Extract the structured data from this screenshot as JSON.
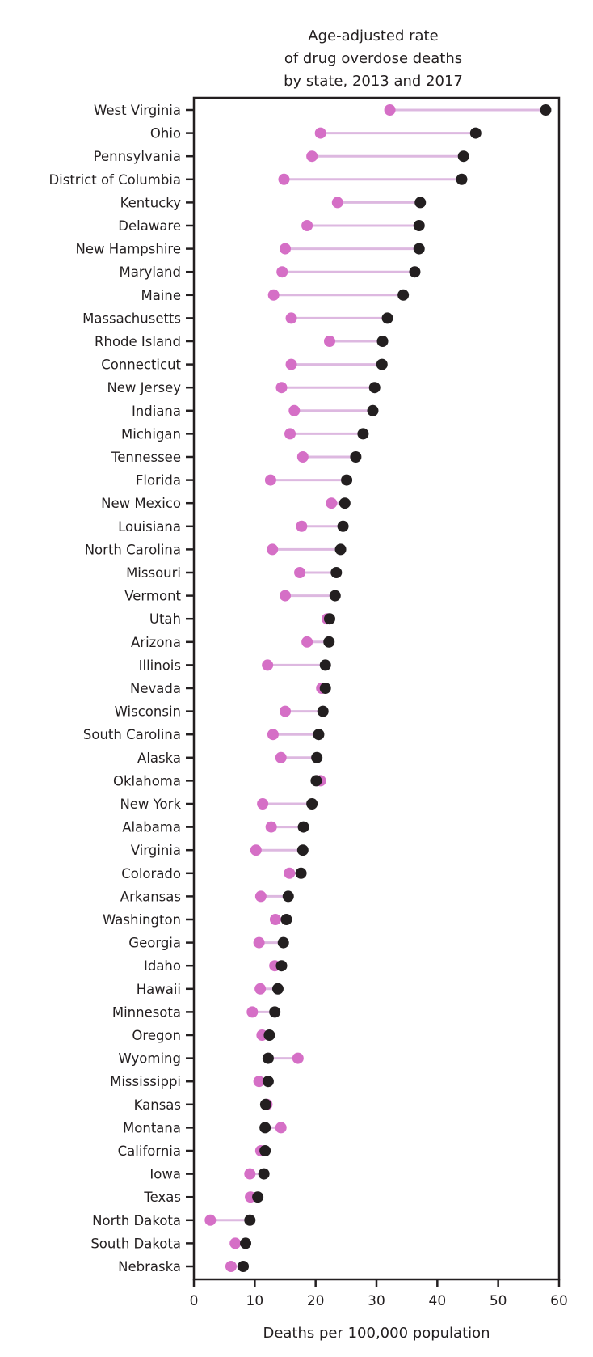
{
  "chart_data": {
    "type": "dot-plot",
    "title_lines": [
      "Age-adjusted rate",
      "of drug overdose deaths",
      "by state, 2013 and 2017"
    ],
    "xlabel": "Deaths per 100,000 population",
    "xlim": [
      0,
      60
    ],
    "xticks": [
      0,
      10,
      20,
      30,
      40,
      50,
      60
    ],
    "grid": false,
    "colors": {
      "y2013": "#d56fc6",
      "y2017": "#231f20",
      "connector": "#ddb8e0",
      "axis": "#231f20"
    },
    "series_names": [
      "2013",
      "2017"
    ],
    "states": [
      "West Virginia",
      "Ohio",
      "Pennsylvania",
      "District of Columbia",
      "Kentucky",
      "Delaware",
      "New Hampshire",
      "Maryland",
      "Maine",
      "Massachusetts",
      "Rhode Island",
      "Connecticut",
      "New Jersey",
      "Indiana",
      "Michigan",
      "Tennessee",
      "Florida",
      "New Mexico",
      "Louisiana",
      "North Carolina",
      "Missouri",
      "Vermont",
      "Utah",
      "Arizona",
      "Illinois",
      "Nevada",
      "Wisconsin",
      "South Carolina",
      "Alaska",
      "Oklahoma",
      "New York",
      "Alabama",
      "Virginia",
      "Colorado",
      "Arkansas",
      "Washington",
      "Georgia",
      "Idaho",
      "Hawaii",
      "Minnesota",
      "Oregon",
      "Wyoming",
      "Mississippi",
      "Kansas",
      "Montana",
      "California",
      "Iowa",
      "Texas",
      "North Dakota",
      "South Dakota",
      "Nebraska"
    ],
    "values_2013": [
      32.2,
      20.8,
      19.4,
      14.8,
      23.6,
      18.6,
      15.0,
      14.5,
      13.1,
      16.0,
      22.3,
      16.0,
      14.4,
      16.5,
      15.8,
      17.9,
      12.6,
      22.6,
      17.7,
      12.9,
      17.4,
      15.0,
      21.9,
      18.6,
      12.1,
      21.0,
      15.0,
      13.0,
      14.3,
      20.8,
      11.3,
      12.7,
      10.2,
      15.7,
      11.0,
      13.4,
      10.7,
      13.3,
      10.9,
      9.6,
      11.2,
      17.1,
      10.7,
      12.0,
      14.3,
      11.0,
      9.2,
      9.3,
      2.7,
      6.8,
      6.1
    ],
    "values_2017": [
      57.8,
      46.3,
      44.3,
      44.0,
      37.2,
      37.0,
      37.0,
      36.3,
      34.4,
      31.8,
      31.0,
      30.9,
      29.7,
      29.4,
      27.8,
      26.6,
      25.1,
      24.8,
      24.5,
      24.1,
      23.4,
      23.2,
      22.3,
      22.2,
      21.6,
      21.6,
      21.2,
      20.5,
      20.2,
      20.1,
      19.4,
      18.0,
      17.9,
      17.6,
      15.5,
      15.2,
      14.7,
      14.4,
      13.8,
      13.3,
      12.4,
      12.2,
      12.2,
      11.8,
      11.7,
      11.7,
      11.5,
      10.5,
      9.2,
      8.5,
      8.1
    ]
  }
}
